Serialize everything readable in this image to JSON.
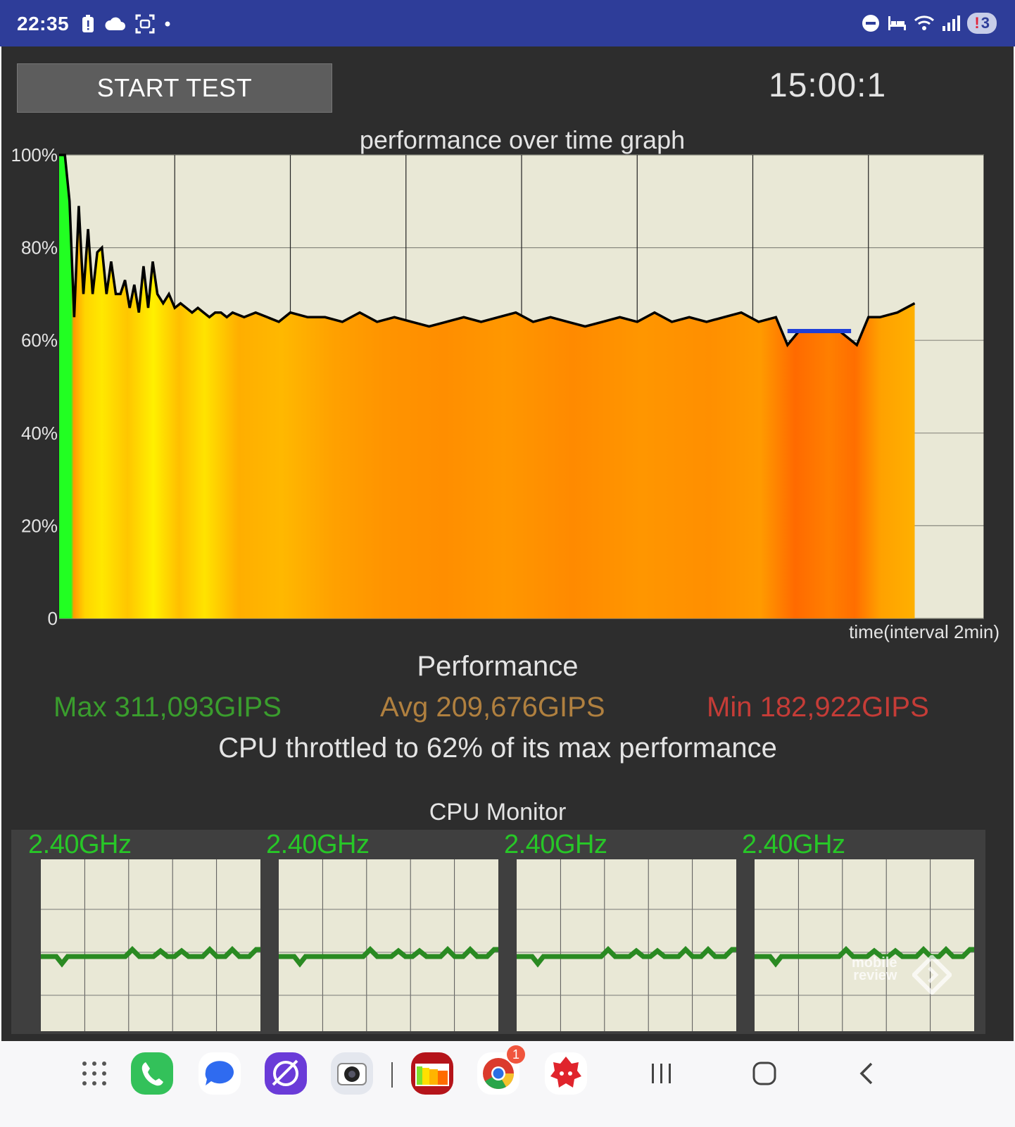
{
  "status_bar": {
    "time": "22:35",
    "battery_alert": "!",
    "battery_count": "3",
    "left_icons": [
      "alert-battery-icon",
      "cloud-icon",
      "screenshot-icon",
      "dot-icon"
    ],
    "right_icons": [
      "dnd-icon",
      "sleep-mode-icon",
      "wifi-icon",
      "signal-icon"
    ]
  },
  "toolbar": {
    "start_label": "START TEST",
    "timer": "15:00:1"
  },
  "graph": {
    "title": "performance over time graph",
    "x_label": "time(interval 2min)",
    "y_ticks": [
      "100%",
      "80%",
      "60%",
      "40%",
      "20%",
      "0"
    ]
  },
  "chart_data": {
    "type": "line",
    "title": "performance over time graph",
    "xlabel": "time(interval 2min)",
    "ylabel": "",
    "ylim": [
      0,
      100
    ],
    "xlim": [
      0,
      16
    ],
    "grid": true,
    "x": [
      0,
      0.1,
      0.18,
      0.26,
      0.34,
      0.42,
      0.5,
      0.58,
      0.66,
      0.74,
      0.82,
      0.9,
      0.98,
      1.06,
      1.14,
      1.22,
      1.3,
      1.38,
      1.46,
      1.54,
      1.62,
      1.7,
      1.8,
      1.9,
      2.0,
      2.1,
      2.2,
      2.3,
      2.4,
      2.5,
      2.6,
      2.7,
      2.8,
      2.9,
      3.0,
      3.2,
      3.4,
      3.6,
      3.8,
      4.0,
      4.3,
      4.6,
      4.9,
      5.2,
      5.5,
      5.8,
      6.1,
      6.4,
      6.7,
      7.0,
      7.3,
      7.6,
      7.9,
      8.2,
      8.5,
      8.8,
      9.1,
      9.4,
      9.7,
      10.0,
      10.3,
      10.6,
      10.9,
      11.2,
      11.5,
      11.8,
      12.1,
      12.4,
      12.6,
      12.8,
      13.0,
      13.2,
      13.5,
      13.8,
      14.0,
      14.2,
      14.5,
      14.8
    ],
    "values": [
      100,
      100,
      90,
      65,
      89,
      70,
      84,
      70,
      79,
      80,
      70,
      77,
      70,
      70,
      73,
      67,
      72,
      66,
      76,
      67,
      77,
      70,
      68,
      70,
      67,
      68,
      67,
      66,
      67,
      66,
      65,
      66,
      66,
      65,
      66,
      65,
      66,
      65,
      64,
      66,
      65,
      65,
      64,
      66,
      64,
      65,
      64,
      63,
      64,
      65,
      64,
      65,
      66,
      64,
      65,
      64,
      63,
      64,
      65,
      64,
      66,
      64,
      65,
      64,
      65,
      66,
      64,
      65,
      59,
      62,
      62,
      62,
      62,
      59,
      65,
      65,
      66,
      68
    ],
    "baseline": {
      "label": "",
      "value": 62,
      "x_range": [
        12.6,
        13.7
      ],
      "color": "#1f3fd8"
    }
  },
  "performance": {
    "heading": "Performance",
    "max": "Max 311,093GIPS",
    "avg": "Avg 209,676GIPS",
    "min": "Min 182,922GIPS",
    "throttle": "CPU throttled to 62% of its max performance"
  },
  "cpu_monitor": {
    "heading": "CPU Monitor",
    "cores": [
      {
        "freq": "2.40GHz"
      },
      {
        "freq": "2.40GHz"
      },
      {
        "freq": "2.40GHz"
      },
      {
        "freq": "2.40GHz"
      }
    ],
    "line_color": "#2a8a22"
  },
  "watermark": {
    "line1": "mobile",
    "line2": "review"
  },
  "navbar": {
    "apps": [
      {
        "name": "app-drawer-icon"
      },
      {
        "name": "phone-app-icon"
      },
      {
        "name": "messages-app-icon"
      },
      {
        "name": "internet-app-icon"
      },
      {
        "name": "camera-app-icon"
      },
      {
        "name": "throttling-test-app-icon"
      },
      {
        "name": "chrome-app-icon",
        "badge": "1"
      },
      {
        "name": "antutu-app-icon"
      }
    ],
    "buttons": [
      "recents-button",
      "home-button",
      "back-button"
    ]
  }
}
